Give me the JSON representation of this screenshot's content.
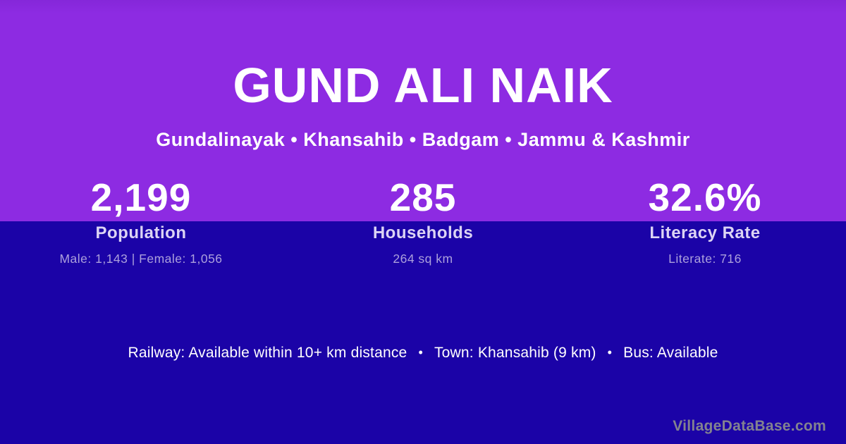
{
  "header": {
    "title": "GUND ALI NAIK",
    "location_line": "Gundalinayak • Khansahib • Badgam • Jammu & Kashmir"
  },
  "stats": [
    {
      "value": "2,199",
      "label": "Population",
      "detail": "Male: 1,143 | Female: 1,056"
    },
    {
      "value": "285",
      "label": "Households",
      "detail": "264 sq km"
    },
    {
      "value": "32.6%",
      "label": "Literacy Rate",
      "detail": "Literate: 716"
    }
  ],
  "transport": {
    "segments": [
      "Railway: Available within 10+ km distance",
      "Town: Khansahib (9 km)",
      "Bus: Available"
    ],
    "bullet": "•"
  },
  "watermark": "VillageDataBase.com",
  "colors": {
    "top_background": "#8d2be2",
    "bottom_background": "#1b03a7",
    "primary_text": "#ffffff",
    "stat_label_text": "#dcd4f4",
    "stat_detail_text": "#aca0dc",
    "watermark_text": "#83838f"
  }
}
